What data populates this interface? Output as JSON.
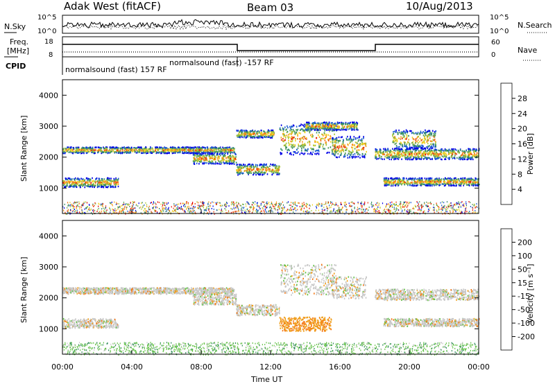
{
  "header": {
    "station": "Adak West (fitACF)",
    "beam": "Beam 03",
    "date": "10/Aug/2013"
  },
  "strip": {
    "nsky_label": "N.Sky",
    "nsky_ticks": [
      "10^5",
      "10^0"
    ],
    "nsky_right_ticks": [
      "10^5",
      "10^0"
    ],
    "nsearch_label": "N.Search",
    "freq_label_1": "Freq.",
    "freq_label_2": "[MHz]",
    "freq_ticks": [
      "18",
      "8"
    ],
    "nave_ticks": [
      "60",
      "0"
    ],
    "nave_label": "Nave",
    "cpid_label": "CPID",
    "cpid_1": "normalsound (fast) 157 RF",
    "cpid_2": "normalsound (fast) -157 RF"
  },
  "chart_data": [
    {
      "type": "heatmap",
      "name": "power",
      "ylabel": "Slant Range [km]",
      "y_ticks": [
        "4000",
        "3000",
        "2000",
        "1000"
      ],
      "ylim": [
        180,
        4500
      ],
      "xlim": [
        0,
        24
      ],
      "colorbar": {
        "label": "Power [dB]",
        "ticks": [
          "28",
          "24",
          "20",
          "16",
          "12",
          "8",
          "4"
        ],
        "colors": [
          "#0000e6",
          "#1e5fd2",
          "#2f8a62",
          "#5aa05a",
          "#a8c83a",
          "#f0d21e",
          "#f5a01e",
          "#f06e14",
          "#e63c0a",
          "#e60000"
        ]
      },
      "echo_bands": [
        {
          "t0": 0.0,
          "t1": 9.9,
          "r0": 2150,
          "r1": 2350
        },
        {
          "t0": 0.0,
          "t1": 3.2,
          "r0": 1050,
          "r1": 1350
        },
        {
          "t0": 7.5,
          "t1": 10.0,
          "r0": 1800,
          "r1": 2150
        },
        {
          "t0": 10.0,
          "t1": 12.5,
          "r0": 1450,
          "r1": 1800
        },
        {
          "t0": 10.0,
          "t1": 12.2,
          "r0": 2650,
          "r1": 2900
        },
        {
          "t0": 12.5,
          "t1": 15.8,
          "r0": 2100,
          "r1": 3100
        },
        {
          "t0": 14.0,
          "t1": 17.0,
          "r0": 2900,
          "r1": 3150
        },
        {
          "t0": 15.5,
          "t1": 17.5,
          "r0": 2000,
          "r1": 2700
        },
        {
          "t0": 18.0,
          "t1": 24.0,
          "r0": 1950,
          "r1": 2300
        },
        {
          "t0": 18.5,
          "t1": 24.0,
          "r0": 1100,
          "r1": 1350
        },
        {
          "t0": 19.0,
          "t1": 21.5,
          "r0": 2300,
          "r1": 2900
        }
      ]
    },
    {
      "type": "heatmap",
      "name": "velocity",
      "xlabel": "Time UT",
      "ylabel": "Slant Range [km]",
      "x_ticks": [
        "00:00",
        "04:00",
        "08:00",
        "12:00",
        "16:00",
        "20:00",
        "00:00"
      ],
      "y_ticks": [
        "4000",
        "3000",
        "2000",
        "1000"
      ],
      "ylim": [
        180,
        4500
      ],
      "xlim": [
        0,
        24
      ],
      "colorbar": {
        "label": "Velocity [m s⁻¹]",
        "ticks": [
          "200",
          "100",
          "50",
          "15",
          "-15",
          "-50",
          "-100",
          "-200"
        ],
        "colors": [
          "#1e3cc8",
          "#2864b4",
          "#2e8b57",
          "#66c34a",
          "#c8c8c8",
          "#f0a01e",
          "#f57814",
          "#f04b0a",
          "#e61e00"
        ]
      },
      "echo_bands": [
        {
          "t0": 0.0,
          "t1": 9.9,
          "r0": 2150,
          "r1": 2350
        },
        {
          "t0": 0.0,
          "t1": 3.2,
          "r0": 1050,
          "r1": 1350
        },
        {
          "t0": 7.5,
          "t1": 10.0,
          "r0": 1800,
          "r1": 2150
        },
        {
          "t0": 10.0,
          "t1": 12.5,
          "r0": 1450,
          "r1": 1800
        },
        {
          "t0": 12.5,
          "t1": 15.8,
          "r0": 2100,
          "r1": 3100
        },
        {
          "t0": 15.5,
          "t1": 17.5,
          "r0": 2000,
          "r1": 2700
        },
        {
          "t0": 18.0,
          "t1": 24.0,
          "r0": 1950,
          "r1": 2300
        },
        {
          "t0": 18.5,
          "t1": 24.0,
          "r0": 1100,
          "r1": 1350
        },
        {
          "t0": 12.5,
          "t1": 15.5,
          "r0": 950,
          "r1": 1400
        }
      ]
    }
  ]
}
